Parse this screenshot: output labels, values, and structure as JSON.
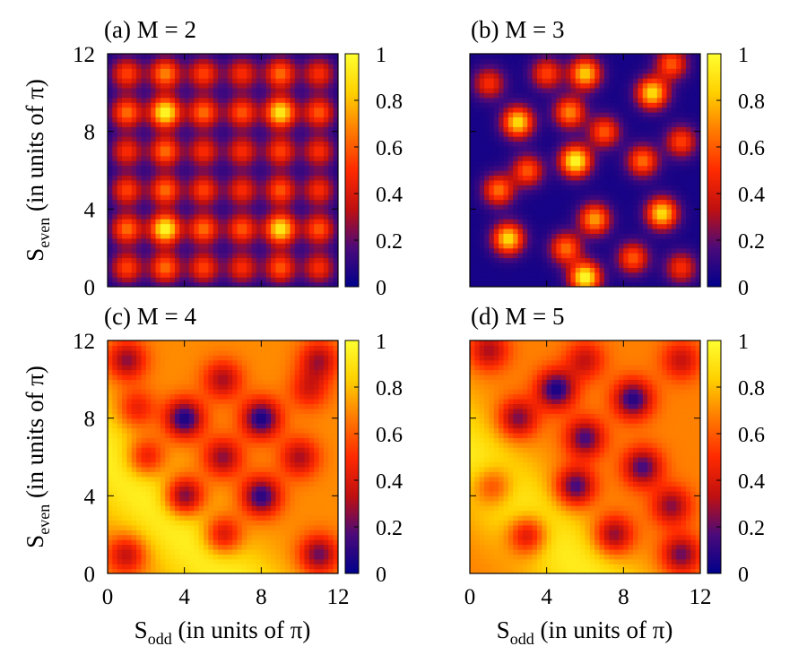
{
  "figure": {
    "xlabel_main": "S",
    "xlabel_sub": "odd",
    "xlabel_rest": " (in units of π)",
    "ylabel_main": "S",
    "ylabel_sub": "even",
    "ylabel_rest": " (in units of π)"
  },
  "colorscale": {
    "stops": [
      "#00008b",
      "#4b0a7a",
      "#c01010",
      "#ff2a00",
      "#ff7a00",
      "#ffd000",
      "#ffff30"
    ],
    "range": [
      0,
      1
    ],
    "ticks": [
      "0",
      "0.2",
      "0.4",
      "0.6",
      "0.8",
      "1"
    ]
  },
  "chart_data": [
    {
      "type": "heatmap",
      "title": "(a) M = 2",
      "xlim": [
        0,
        12
      ],
      "ylim": [
        0,
        12
      ],
      "xticks": [
        "0",
        "4",
        "8",
        "12"
      ],
      "yticks": [
        "0",
        "4",
        "8",
        "12"
      ],
      "peaks": [
        {
          "x": 3,
          "y": 3,
          "v": 0.95
        },
        {
          "x": 3,
          "y": 9,
          "v": 0.95
        },
        {
          "x": 9,
          "y": 3,
          "v": 0.9
        },
        {
          "x": 9,
          "y": 9,
          "v": 0.9
        },
        {
          "x": 1,
          "y": 1,
          "v": 0.5
        },
        {
          "x": 3,
          "y": 1,
          "v": 0.6
        },
        {
          "x": 5,
          "y": 1,
          "v": 0.5
        },
        {
          "x": 7,
          "y": 1,
          "v": 0.45
        },
        {
          "x": 9,
          "y": 1,
          "v": 0.55
        },
        {
          "x": 11,
          "y": 1,
          "v": 0.45
        },
        {
          "x": 1,
          "y": 3,
          "v": 0.6
        },
        {
          "x": 5,
          "y": 3,
          "v": 0.6
        },
        {
          "x": 7,
          "y": 3,
          "v": 0.55
        },
        {
          "x": 11,
          "y": 3,
          "v": 0.55
        },
        {
          "x": 1,
          "y": 5,
          "v": 0.5
        },
        {
          "x": 3,
          "y": 5,
          "v": 0.6
        },
        {
          "x": 5,
          "y": 5,
          "v": 0.5
        },
        {
          "x": 7,
          "y": 5,
          "v": 0.45
        },
        {
          "x": 9,
          "y": 5,
          "v": 0.55
        },
        {
          "x": 11,
          "y": 5,
          "v": 0.45
        },
        {
          "x": 1,
          "y": 7,
          "v": 0.45
        },
        {
          "x": 3,
          "y": 7,
          "v": 0.6
        },
        {
          "x": 5,
          "y": 7,
          "v": 0.45
        },
        {
          "x": 7,
          "y": 7,
          "v": 0.45
        },
        {
          "x": 9,
          "y": 7,
          "v": 0.5
        },
        {
          "x": 11,
          "y": 7,
          "v": 0.45
        },
        {
          "x": 1,
          "y": 9,
          "v": 0.6
        },
        {
          "x": 5,
          "y": 9,
          "v": 0.6
        },
        {
          "x": 7,
          "y": 9,
          "v": 0.55
        },
        {
          "x": 11,
          "y": 9,
          "v": 0.55
        },
        {
          "x": 1,
          "y": 11,
          "v": 0.5
        },
        {
          "x": 3,
          "y": 11,
          "v": 0.65
        },
        {
          "x": 5,
          "y": 11,
          "v": 0.5
        },
        {
          "x": 7,
          "y": 11,
          "v": 0.45
        },
        {
          "x": 9,
          "y": 11,
          "v": 0.6
        },
        {
          "x": 11,
          "y": 11,
          "v": 0.45
        }
      ]
    },
    {
      "type": "heatmap",
      "title": "(b) M = 3",
      "xlim": [
        0,
        12
      ],
      "ylim": [
        0,
        12
      ],
      "xticks": [
        "0",
        "4",
        "8",
        "12"
      ],
      "yticks": [
        "0",
        "4",
        "8",
        "12"
      ],
      "peaks": [
        {
          "x": 5.5,
          "y": 6.5,
          "v": 0.95
        },
        {
          "x": 6,
          "y": 0.5,
          "v": 0.95
        },
        {
          "x": 6,
          "y": 11,
          "v": 0.8
        },
        {
          "x": 2.5,
          "y": 8.5,
          "v": 0.85
        },
        {
          "x": 2,
          "y": 2.5,
          "v": 0.85
        },
        {
          "x": 9.5,
          "y": 10,
          "v": 0.85
        },
        {
          "x": 10,
          "y": 3.8,
          "v": 0.85
        },
        {
          "x": 5.2,
          "y": 9,
          "v": 0.65
        },
        {
          "x": 6.5,
          "y": 3.5,
          "v": 0.7
        },
        {
          "x": 5,
          "y": 2,
          "v": 0.6
        },
        {
          "x": 1.5,
          "y": 5,
          "v": 0.6
        },
        {
          "x": 3,
          "y": 6,
          "v": 0.55
        },
        {
          "x": 9,
          "y": 6.5,
          "v": 0.6
        },
        {
          "x": 11,
          "y": 7.5,
          "v": 0.5
        },
        {
          "x": 1,
          "y": 10.5,
          "v": 0.45
        },
        {
          "x": 8.5,
          "y": 1.5,
          "v": 0.55
        },
        {
          "x": 11,
          "y": 1,
          "v": 0.45
        },
        {
          "x": 4,
          "y": 11,
          "v": 0.5
        },
        {
          "x": 10.5,
          "y": 11.5,
          "v": 0.55
        },
        {
          "x": 7,
          "y": 8,
          "v": 0.55
        }
      ]
    },
    {
      "type": "heatmap",
      "title": "(c) M = 4",
      "xlim": [
        0,
        12
      ],
      "ylim": [
        0,
        12
      ],
      "xticks": [
        "0",
        "4",
        "8",
        "12"
      ],
      "yticks": [
        "0",
        "4",
        "8",
        "12"
      ],
      "holes": [
        {
          "x": 4,
          "y": 8,
          "v": 0.05
        },
        {
          "x": 8,
          "y": 8,
          "v": 0.05
        },
        {
          "x": 4,
          "y": 4,
          "v": 0.08
        },
        {
          "x": 8,
          "y": 4,
          "v": 0.08
        },
        {
          "x": 6,
          "y": 6,
          "v": 0.25
        },
        {
          "x": 2,
          "y": 6,
          "v": 0.3
        },
        {
          "x": 10,
          "y": 6,
          "v": 0.3
        },
        {
          "x": 6,
          "y": 10,
          "v": 0.3
        },
        {
          "x": 6,
          "y": 2,
          "v": 0.25
        },
        {
          "x": 1,
          "y": 11,
          "v": 0.25
        },
        {
          "x": 11,
          "y": 11,
          "v": 0.3
        },
        {
          "x": 11,
          "y": 1,
          "v": 0.2
        },
        {
          "x": 1,
          "y": 1,
          "v": 0.3
        },
        {
          "x": 10.5,
          "y": 9.5,
          "v": 0.4
        },
        {
          "x": 1.5,
          "y": 8.5,
          "v": 0.4
        }
      ],
      "base": 0.7
    },
    {
      "type": "heatmap",
      "title": "(d) M = 5",
      "xlim": [
        0,
        12
      ],
      "ylim": [
        0,
        12
      ],
      "xticks": [
        "0",
        "4",
        "8",
        "12"
      ],
      "yticks": [
        "0",
        "4",
        "8",
        "12"
      ],
      "holes": [
        {
          "x": 4.5,
          "y": 9.5,
          "v": 0.05
        },
        {
          "x": 8.5,
          "y": 9,
          "v": 0.08
        },
        {
          "x": 6,
          "y": 7,
          "v": 0.15
        },
        {
          "x": 2.5,
          "y": 8,
          "v": 0.2
        },
        {
          "x": 5.5,
          "y": 4.5,
          "v": 0.1
        },
        {
          "x": 9,
          "y": 5.5,
          "v": 0.15
        },
        {
          "x": 7.5,
          "y": 2,
          "v": 0.2
        },
        {
          "x": 3,
          "y": 2,
          "v": 0.2
        },
        {
          "x": 10.5,
          "y": 3.5,
          "v": 0.25
        },
        {
          "x": 1,
          "y": 11.5,
          "v": 0.3
        },
        {
          "x": 11,
          "y": 1,
          "v": 0.2
        },
        {
          "x": 1.2,
          "y": 4.5,
          "v": 0.35
        },
        {
          "x": 11,
          "y": 11,
          "v": 0.35
        },
        {
          "x": 6,
          "y": 11,
          "v": 0.35
        }
      ],
      "base": 0.68
    }
  ]
}
